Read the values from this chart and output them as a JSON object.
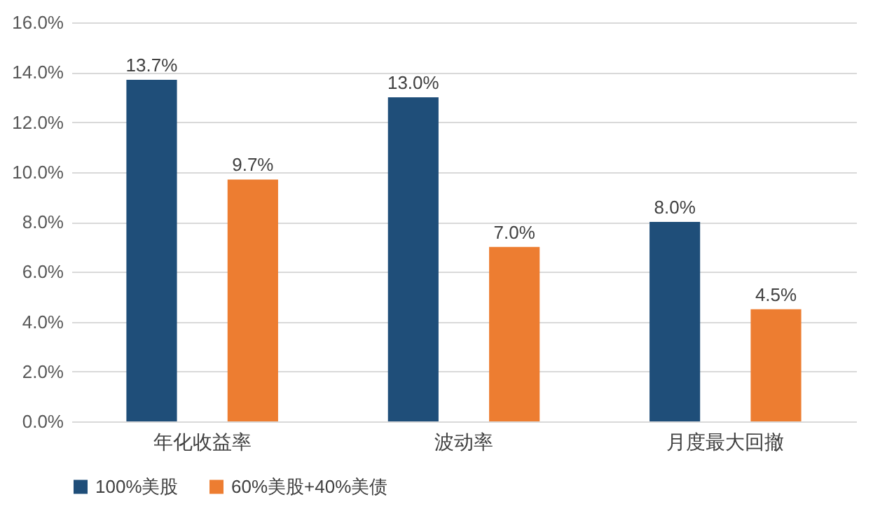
{
  "chart_data": {
    "type": "bar",
    "categories": [
      "年化收益率",
      "波动率",
      "月度最大回撤"
    ],
    "series": [
      {
        "name": "100%美股",
        "color": "#1f4e79",
        "values": [
          13.7,
          13.0,
          8.0
        ],
        "value_labels": [
          "13.7%",
          "13.0%",
          "8.0%"
        ]
      },
      {
        "name": "60%美股+40%美债",
        "color": "#ed7d31",
        "values": [
          9.7,
          7.0,
          4.5
        ],
        "value_labels": [
          "9.7%",
          "7.0%",
          "4.5%"
        ]
      }
    ],
    "ylim": [
      0,
      16
    ],
    "yticks": [
      {
        "value": 0,
        "label": "0.0%"
      },
      {
        "value": 2,
        "label": "2.0%"
      },
      {
        "value": 4,
        "label": "4.0%"
      },
      {
        "value": 6,
        "label": "6.0%"
      },
      {
        "value": 8,
        "label": "8.0%"
      },
      {
        "value": 10,
        "label": "10.0%"
      },
      {
        "value": 12,
        "label": "12.0%"
      },
      {
        "value": 14,
        "label": "14.0%"
      },
      {
        "value": 16,
        "label": "16.0%"
      }
    ],
    "grid": "y",
    "legend": "bottom"
  }
}
